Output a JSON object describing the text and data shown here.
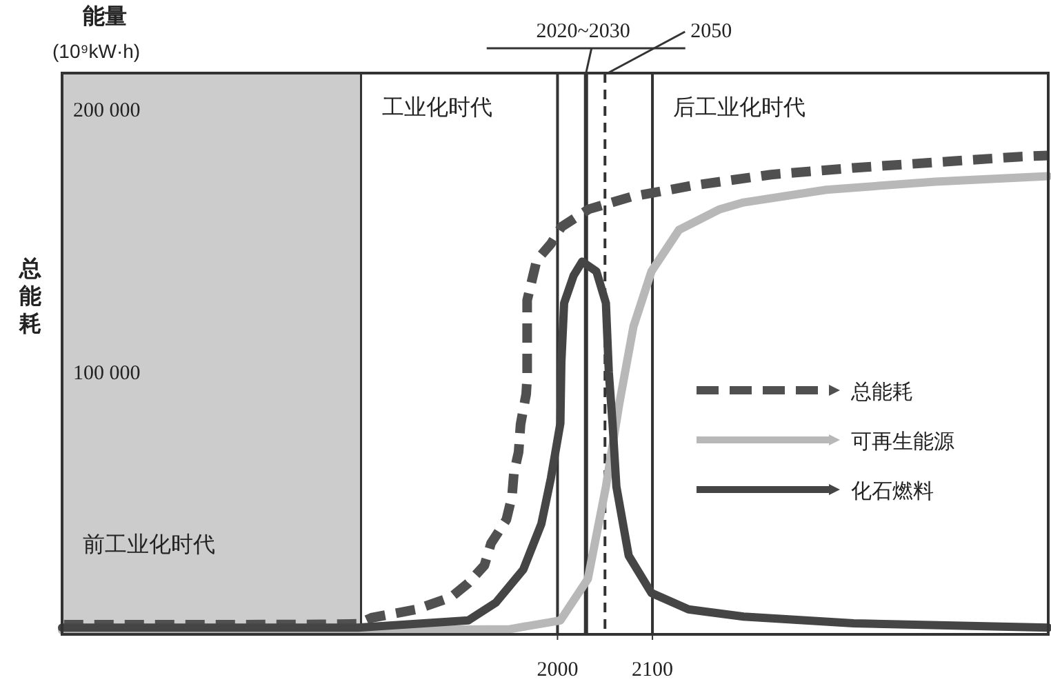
{
  "chart_data": {
    "type": "line",
    "ylabel": "总能耗",
    "annotations": [
      "能量",
      "(10⁹kW·h)"
    ],
    "xlim": [
      1478,
      2517
    ],
    "xticks": [
      2000,
      2100
    ],
    "ylim": [
      0,
      214000
    ],
    "yticks": [
      {
        "value": 100000,
        "label": "100 000"
      },
      {
        "value": 200000,
        "label": "200 000"
      }
    ],
    "grid": false,
    "legend": "right",
    "bands": [
      {
        "axis": "x",
        "from": 1478,
        "to": 1793,
        "label": "前工业化时代",
        "color": "#cccccc"
      },
      {
        "axis": "x",
        "from": 1793,
        "to": 2000,
        "label": "工业化时代",
        "color": "#ffffff"
      },
      {
        "axis": "x",
        "from": 2100,
        "to": 2517,
        "label": "后工业化时代",
        "color": "#ffffff"
      }
    ],
    "ref_lines": [
      {
        "axis": "x",
        "value": 2000,
        "label": null,
        "line_style": "solid"
      },
      {
        "axis": "x",
        "value": 2030,
        "label": "2020~2030",
        "line_style": "solid"
      },
      {
        "axis": "x",
        "value": 2050,
        "label": "2050",
        "line_style": "dashed"
      },
      {
        "axis": "x",
        "value": 2100,
        "label": null,
        "line_style": "solid"
      }
    ],
    "series": [
      {
        "name": "总能耗",
        "line_style": "dashed",
        "color": "#505050",
        "x": [
          1480,
          1550,
          1650,
          1750,
          1790,
          1804,
          1851,
          1888,
          1906,
          1923,
          1930,
          1946,
          1952,
          1954,
          1959,
          1961,
          1964,
          1967,
          1968,
          1968,
          1968,
          1968,
          1968,
          1978,
          1993,
          2004,
          2033,
          2077,
          2142,
          2225,
          2312,
          2398,
          2485,
          2517
        ],
        "values": [
          3700,
          3700,
          3700,
          3800,
          4000,
          6300,
          9500,
          14200,
          19500,
          26300,
          34700,
          43700,
          52600,
          61600,
          69500,
          80000,
          85800,
          91600,
          97900,
          103700,
          110500,
          117400,
          127400,
          142600,
          148900,
          155300,
          162100,
          166800,
          171100,
          175300,
          177900,
          180000,
          182100,
          182600
        ]
      },
      {
        "name": "可再生能源",
        "line_style": "solid",
        "color": "#b8b8b8",
        "x": [
          1478,
          1800,
          1950,
          2003,
          2032,
          2051,
          2065,
          2080,
          2099,
          2128,
          2171,
          2196,
          2283,
          2398,
          2517
        ],
        "values": [
          1600,
          1600,
          2000,
          5300,
          21100,
          56300,
          87900,
          117400,
          138400,
          154200,
          162100,
          164700,
          169500,
          172600,
          174700
        ]
      },
      {
        "name": "化石燃料",
        "line_style": "solid",
        "color": "#454545",
        "x": [
          1478,
          1790,
          1906,
          1935,
          1964,
          1983,
          1993,
          2003,
          2004,
          2007,
          2017,
          2026,
          2041,
          2051,
          2054,
          2058,
          2062,
          2075,
          2099,
          2138,
          2196,
          2312,
          2517
        ],
        "values": [
          2600,
          2600,
          5300,
          12100,
          24700,
          42100,
          59500,
          80500,
          103700,
          126300,
          136800,
          142100,
          138400,
          126300,
          100000,
          80500,
          56300,
          30000,
          15800,
          9500,
          6800,
          4200,
          2600
        ]
      }
    ]
  }
}
